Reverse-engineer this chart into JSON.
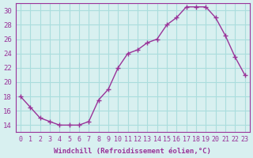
{
  "x": [
    0,
    1,
    2,
    3,
    4,
    5,
    6,
    7,
    8,
    9,
    10,
    11,
    12,
    13,
    14,
    15,
    16,
    17,
    18,
    19,
    20,
    21,
    22,
    23
  ],
  "y": [
    18,
    16.5,
    15,
    14.5,
    14,
    14,
    14,
    14.5,
    17.5,
    19,
    22,
    24,
    24.5,
    25.5,
    26,
    28,
    29,
    30.5,
    30.5,
    30.5,
    29,
    26.5,
    23.5,
    21
  ],
  "line_color": "#993399",
  "bg_color": "#d8f0f0",
  "grid_color": "#aadddd",
  "xlabel": "Windchill (Refroidissement éolien,°C)",
  "xlim": [
    -0.5,
    23.5
  ],
  "ylim": [
    13,
    31
  ],
  "yticks": [
    14,
    16,
    18,
    20,
    22,
    24,
    26,
    28,
    30
  ],
  "xticks": [
    0,
    1,
    2,
    3,
    4,
    5,
    6,
    7,
    8,
    9,
    10,
    11,
    12,
    13,
    14,
    15,
    16,
    17,
    18,
    19,
    20,
    21,
    22,
    23
  ],
  "axis_color": "#993399"
}
